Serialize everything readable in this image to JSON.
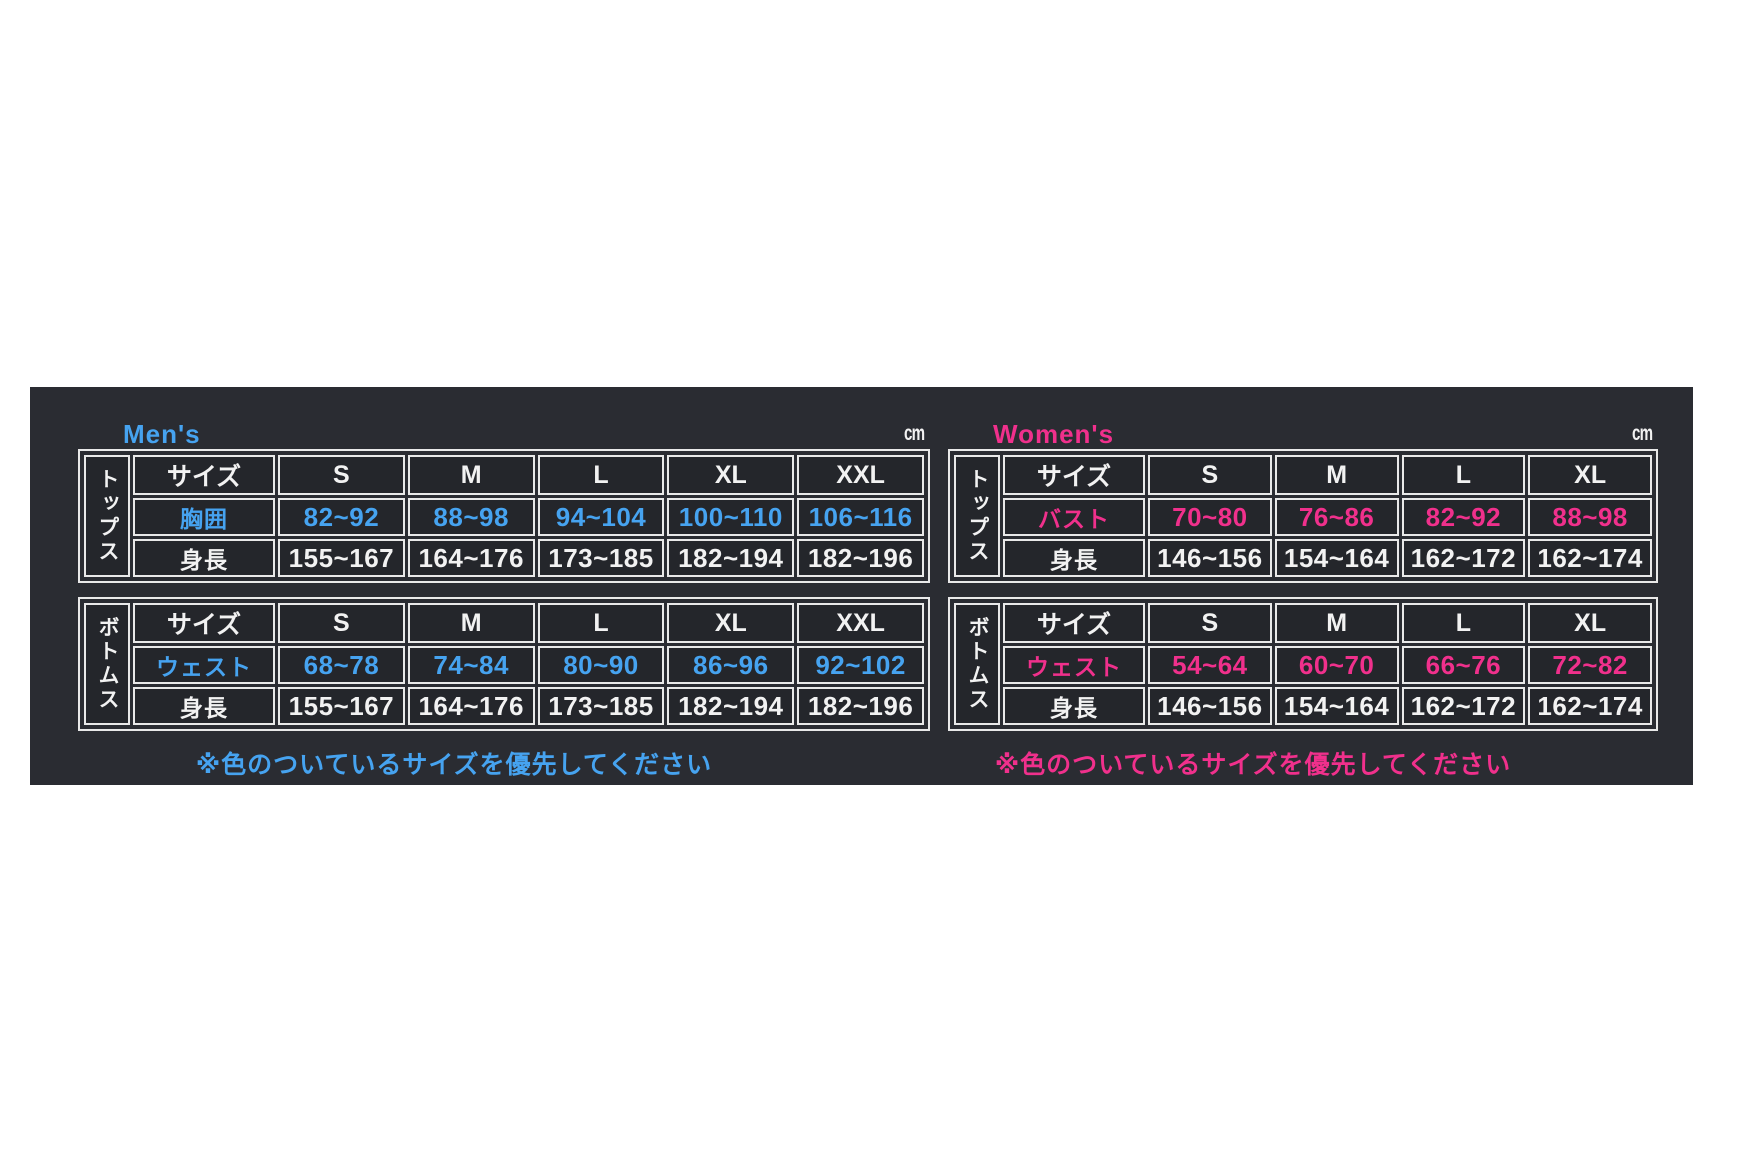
{
  "colors": {
    "page_background": "#ffffff",
    "panel_background": "#2a2c32",
    "cell_background": "#24262b",
    "table_border": "#e9e9e9",
    "default_text": "#f2f2f2",
    "mens_accent": "#46a3f0",
    "womens_accent": "#f0308c"
  },
  "sections": [
    {
      "id": "mens",
      "label": "Men's",
      "accent": "#46a3f0",
      "unit": "cm",
      "note": "※色のついているサイズを優先してください",
      "tables": [
        {
          "category": "トップス",
          "header": [
            "サイズ",
            "S",
            "M",
            "L",
            "XL",
            "XXL"
          ],
          "rows": [
            {
              "label": "胸囲",
              "accent": true,
              "values": [
                "82~92",
                "88~98",
                "94~104",
                "100~110",
                "106~116"
              ]
            },
            {
              "label": "身長",
              "accent": false,
              "values": [
                "155~167",
                "164~176",
                "173~185",
                "182~194",
                "182~196"
              ]
            }
          ]
        },
        {
          "category": "ボトムス",
          "header": [
            "サイズ",
            "S",
            "M",
            "L",
            "XL",
            "XXL"
          ],
          "rows": [
            {
              "label": "ウェスト",
              "accent": true,
              "values": [
                "68~78",
                "74~84",
                "80~90",
                "86~96",
                "92~102"
              ]
            },
            {
              "label": "身長",
              "accent": false,
              "values": [
                "155~167",
                "164~176",
                "173~185",
                "182~194",
                "182~196"
              ]
            }
          ]
        }
      ]
    },
    {
      "id": "womens",
      "label": "Women's",
      "accent": "#f0308c",
      "unit": "cm",
      "note": "※色のついているサイズを優先してください",
      "tables": [
        {
          "category": "トップス",
          "header": [
            "サイズ",
            "S",
            "M",
            "L",
            "XL"
          ],
          "rows": [
            {
              "label": "バスト",
              "accent": true,
              "values": [
                "70~80",
                "76~86",
                "82~92",
                "88~98"
              ]
            },
            {
              "label": "身長",
              "accent": false,
              "values": [
                "146~156",
                "154~164",
                "162~172",
                "162~174"
              ]
            }
          ]
        },
        {
          "category": "ボトムス",
          "header": [
            "サイズ",
            "S",
            "M",
            "L",
            "XL"
          ],
          "rows": [
            {
              "label": "ウェスト",
              "accent": true,
              "values": [
                "54~64",
                "60~70",
                "66~76",
                "72~82"
              ]
            },
            {
              "label": "身長",
              "accent": false,
              "values": [
                "146~156",
                "154~164",
                "162~172",
                "162~174"
              ]
            }
          ]
        }
      ]
    }
  ]
}
